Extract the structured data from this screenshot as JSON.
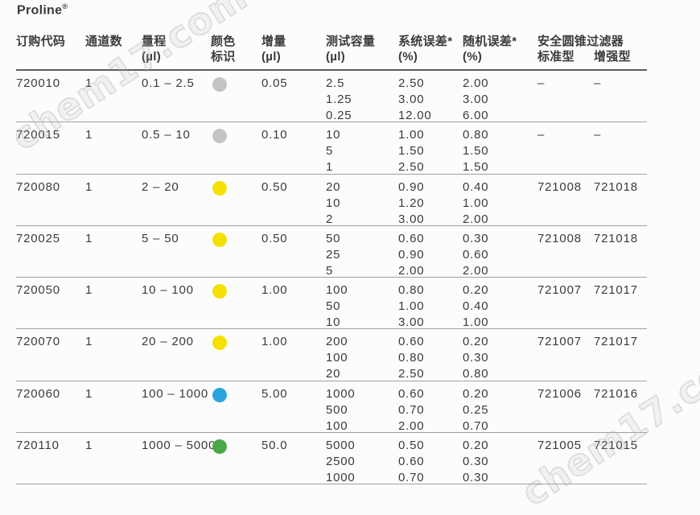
{
  "page": {
    "title": "Proline",
    "title_reg": "®"
  },
  "watermark": {
    "text": "chem17.com"
  },
  "table": {
    "headers": {
      "order_code": "订购代码",
      "channels": "通道数",
      "range_l1": "量程",
      "range_l2": "(µl)",
      "color_l1": "颜色",
      "color_l2": "标识",
      "increment_l1": "增量",
      "increment_l2": "(µl)",
      "test_volume_l1": "测试容量",
      "test_volume_l2": "(µl)",
      "sys_error_l1": "系统误差*",
      "sys_error_l2": "(%)",
      "rand_error_l1": "随机误差*",
      "rand_error_l2": "(%)",
      "filter_group": "安全圆锥过滤器",
      "filter_standard": "标准型",
      "filter_enhanced": "增强型"
    },
    "rows": [
      {
        "code": "720010",
        "channels": "1",
        "range": "0.1 – 2.5",
        "color_name": "gray",
        "color_hex": "#c4c4c4",
        "increment": "0.05",
        "volumes": [
          "2.5",
          "1.25",
          "0.25"
        ],
        "sys_errors": [
          "2.50",
          "3.00",
          "12.00"
        ],
        "rand_errors": [
          "2.00",
          "3.00",
          "6.00"
        ],
        "filter_standard": "–",
        "filter_enhanced": "–"
      },
      {
        "code": "720015",
        "channels": "1",
        "range": "0.5 – 10",
        "color_name": "gray",
        "color_hex": "#c4c4c4",
        "increment": "0.10",
        "volumes": [
          "10",
          "5",
          "1"
        ],
        "sys_errors": [
          "1.00",
          "1.50",
          "2.50"
        ],
        "rand_errors": [
          "0.80",
          "1.50",
          "1.50"
        ],
        "filter_standard": "–",
        "filter_enhanced": "–"
      },
      {
        "code": "720080",
        "channels": "1",
        "range": "2 – 20",
        "color_name": "yellow",
        "color_hex": "#f5e100",
        "increment": "0.50",
        "volumes": [
          "20",
          "10",
          "2"
        ],
        "sys_errors": [
          "0.90",
          "1.20",
          "3.00"
        ],
        "rand_errors": [
          "0.40",
          "1.00",
          "2.00"
        ],
        "filter_standard": "721008",
        "filter_enhanced": "721018"
      },
      {
        "code": "720025",
        "channels": "1",
        "range": "5 – 50",
        "color_name": "yellow",
        "color_hex": "#f5e100",
        "increment": "0.50",
        "volumes": [
          "50",
          "25",
          "5"
        ],
        "sys_errors": [
          "0.60",
          "0.90",
          "2.00"
        ],
        "rand_errors": [
          "0.30",
          "0.60",
          "2.00"
        ],
        "filter_standard": "721008",
        "filter_enhanced": "721018"
      },
      {
        "code": "720050",
        "channels": "1",
        "range": "10 – 100",
        "color_name": "yellow",
        "color_hex": "#f5e100",
        "increment": "1.00",
        "volumes": [
          "100",
          "50",
          "10"
        ],
        "sys_errors": [
          "0.80",
          "1.00",
          "3.00"
        ],
        "rand_errors": [
          "0.20",
          "0.40",
          "1.00"
        ],
        "filter_standard": "721007",
        "filter_enhanced": "721017"
      },
      {
        "code": "720070",
        "channels": "1",
        "range": "20 – 200",
        "color_name": "yellow",
        "color_hex": "#f5e100",
        "increment": "1.00",
        "volumes": [
          "200",
          "100",
          "20"
        ],
        "sys_errors": [
          "0.60",
          "0.80",
          "2.50"
        ],
        "rand_errors": [
          "0.20",
          "0.30",
          "0.80"
        ],
        "filter_standard": "721007",
        "filter_enhanced": "721017"
      },
      {
        "code": "720060",
        "channels": "1",
        "range": "100 – 1000",
        "color_name": "blue",
        "color_hex": "#2aa4de",
        "increment": "5.00",
        "volumes": [
          "1000",
          "500",
          "100"
        ],
        "sys_errors": [
          "0.60",
          "0.70",
          "2.00"
        ],
        "rand_errors": [
          "0.20",
          "0.25",
          "0.70"
        ],
        "filter_standard": "721006",
        "filter_enhanced": "721016"
      },
      {
        "code": "720110",
        "channels": "1",
        "range": "1000 – 5000",
        "color_name": "green",
        "color_hex": "#4aa748",
        "increment": "50.0",
        "volumes": [
          "5000",
          "2500",
          "1000"
        ],
        "sys_errors": [
          "0.50",
          "0.60",
          "0.70"
        ],
        "rand_errors": [
          "0.20",
          "0.30",
          "0.30"
        ],
        "filter_standard": "721005",
        "filter_enhanced": "721015"
      }
    ]
  }
}
